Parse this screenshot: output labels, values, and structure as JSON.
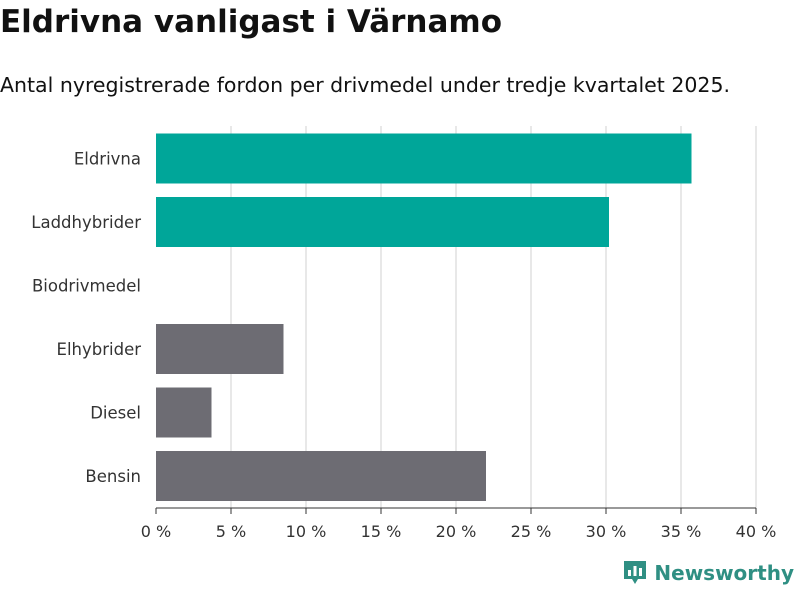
{
  "header": {
    "title": "Eldrivna vanligast i Värnamo",
    "subtitle": "Antal nyregistrerade fordon per drivmedel under tredje kvartalet 2025."
  },
  "brand": {
    "name": "Newsworthy",
    "color": "#2f8f83"
  },
  "colors": {
    "highlight": "#00a699",
    "default": "#6d6c73",
    "grid": "#d9d9d9",
    "axis": "#333333"
  },
  "chart_data": {
    "type": "bar",
    "orientation": "horizontal",
    "title": "Eldrivna vanligast i Värnamo",
    "subtitle": "Antal nyregistrerade fordon per drivmedel under tredje kvartalet 2025.",
    "xlabel": "",
    "ylabel": "",
    "unit": "%",
    "xlim": [
      0,
      40
    ],
    "ticks": [
      0,
      5,
      10,
      15,
      20,
      25,
      30,
      35,
      40
    ],
    "tick_labels": [
      "0 %",
      "5 %",
      "10 %",
      "15 %",
      "20 %",
      "25 %",
      "30 %",
      "35 %",
      "40 %"
    ],
    "grid": true,
    "categories": [
      "Eldrivna",
      "Laddhybrider",
      "Biodrivmedel",
      "Elhybrider",
      "Diesel",
      "Bensin"
    ],
    "values": [
      35.7,
      30.2,
      0,
      8.5,
      3.7,
      22.0
    ],
    "highlighted": [
      true,
      true,
      false,
      false,
      false,
      false
    ]
  }
}
